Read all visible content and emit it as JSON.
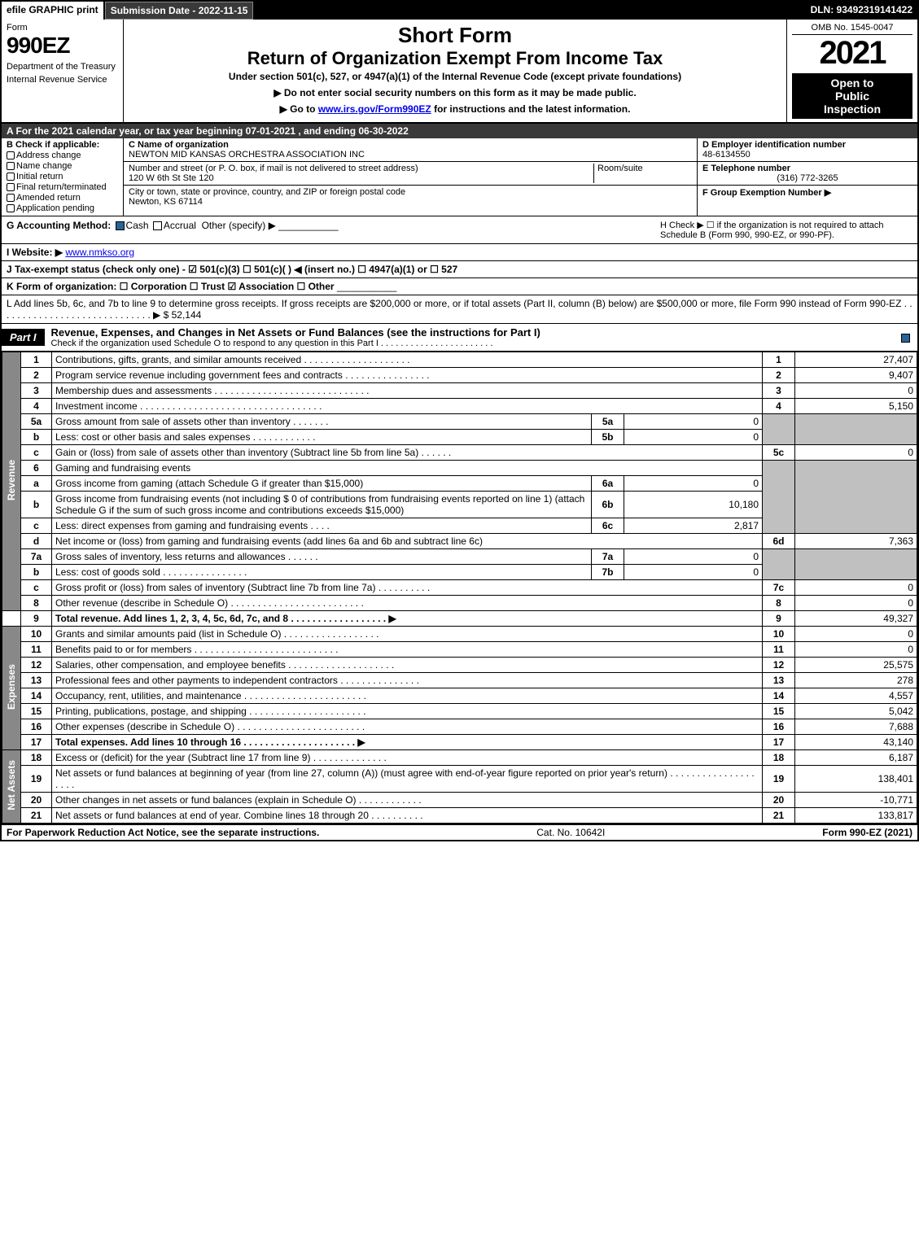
{
  "top_bar": {
    "efile": "efile GRAPHIC print",
    "submission": "Submission Date - 2022-11-15",
    "dln": "DLN: 93492319141422"
  },
  "header": {
    "form_label": "Form",
    "form_number": "990EZ",
    "dept1": "Department of the Treasury",
    "dept2": "Internal Revenue Service",
    "short_form": "Short Form",
    "return_title": "Return of Organization Exempt From Income Tax",
    "under_text": "Under section 501(c), 527, or 4947(a)(1) of the Internal Revenue Code (except private foundations)",
    "instr1": "▶ Do not enter social security numbers on this form as it may be made public.",
    "instr2_pre": "▶ Go to ",
    "instr2_link": "www.irs.gov/Form990EZ",
    "instr2_post": " for instructions and the latest information.",
    "omb": "OMB No. 1545-0047",
    "year": "2021",
    "open1": "Open to",
    "open2": "Public",
    "open3": "Inspection"
  },
  "section_A": "A  For the 2021 calendar year, or tax year beginning 07-01-2021 , and ending 06-30-2022",
  "col_B": {
    "header": "B  Check if applicable:",
    "items": [
      "Address change",
      "Name change",
      "Initial return",
      "Final return/terminated",
      "Amended return",
      "Application pending"
    ]
  },
  "col_C": {
    "c_label": "C Name of organization",
    "c_value": "NEWTON MID KANSAS ORCHESTRA ASSOCIATION INC",
    "street_label": "Number and street (or P. O. box, if mail is not delivered to street address)",
    "street_value": "120 W 6th St Ste 120",
    "room_label": "Room/suite",
    "room_value": "",
    "city_label": "City or town, state or province, country, and ZIP or foreign postal code",
    "city_value": "Newton, KS  67114"
  },
  "col_DEF": {
    "d_label": "D Employer identification number",
    "d_value": "48-6134550",
    "e_label": "E Telephone number",
    "e_value": "(316) 772-3265",
    "f_label": "F Group Exemption Number  ▶",
    "f_value": ""
  },
  "method": {
    "g_label": "G Accounting Method:",
    "cash": "Cash",
    "accrual": "Accrual",
    "other": "Other (specify) ▶",
    "h_text": "H  Check ▶ ☐ if the organization is not required to attach Schedule B (Form 990, 990-EZ, or 990-PF)."
  },
  "website": {
    "label": "I Website: ▶",
    "value": "www.nmkso.org"
  },
  "tax_exempt": "J Tax-exempt status (check only one) - ☑ 501(c)(3) ☐ 501(c)( ) ◀ (insert no.) ☐ 4947(a)(1) or ☐ 527",
  "form_org": "K Form of organization:  ☐ Corporation  ☐ Trust  ☑ Association  ☐ Other",
  "line_L": {
    "text": "L Add lines 5b, 6c, and 7b to line 9 to determine gross receipts. If gross receipts are $200,000 or more, or if total assets (Part II, column (B) below) are $500,000 or more, file Form 990 instead of Form 990-EZ . . . . . . . . . . . . . . . . . . . . . . . . . . . . . ▶ $ ",
    "value": "52,144"
  },
  "part1": {
    "tab": "Part I",
    "title": "Revenue, Expenses, and Changes in Net Assets or Fund Balances (see the instructions for Part I)",
    "sub": "Check if the organization used Schedule O to respond to any question in this Part I . . . . . . . . . . . . . . . . . . . . . . ."
  },
  "side_labels": {
    "revenue": "Revenue",
    "expenses": "Expenses",
    "netassets": "Net Assets"
  },
  "rows": {
    "r1": {
      "n": "1",
      "d": "Contributions, gifts, grants, and similar amounts received",
      "ln": "1",
      "v": "27,407"
    },
    "r2": {
      "n": "2",
      "d": "Program service revenue including government fees and contracts",
      "ln": "2",
      "v": "9,407"
    },
    "r3": {
      "n": "3",
      "d": "Membership dues and assessments",
      "ln": "3",
      "v": "0"
    },
    "r4": {
      "n": "4",
      "d": "Investment income",
      "ln": "4",
      "v": "5,150"
    },
    "r5a": {
      "n": "5a",
      "d": "Gross amount from sale of assets other than inventory",
      "sn": "5a",
      "sv": "0"
    },
    "r5b": {
      "n": "b",
      "d": "Less: cost or other basis and sales expenses",
      "sn": "5b",
      "sv": "0"
    },
    "r5c": {
      "n": "c",
      "d": "Gain or (loss) from sale of assets other than inventory (Subtract line 5b from line 5a)",
      "ln": "5c",
      "v": "0"
    },
    "r6": {
      "n": "6",
      "d": "Gaming and fundraising events"
    },
    "r6a": {
      "n": "a",
      "d": "Gross income from gaming (attach Schedule G if greater than $15,000)",
      "sn": "6a",
      "sv": "0"
    },
    "r6b": {
      "n": "b",
      "d": "Gross income from fundraising events (not including $ 0  of contributions from fundraising events reported on line 1) (attach Schedule G if the sum of such gross income and contributions exceeds $15,000)",
      "sn": "6b",
      "sv": "10,180"
    },
    "r6c": {
      "n": "c",
      "d": "Less: direct expenses from gaming and fundraising events",
      "sn": "6c",
      "sv": "2,817"
    },
    "r6d": {
      "n": "d",
      "d": "Net income or (loss) from gaming and fundraising events (add lines 6a and 6b and subtract line 6c)",
      "ln": "6d",
      "v": "7,363"
    },
    "r7a": {
      "n": "7a",
      "d": "Gross sales of inventory, less returns and allowances",
      "sn": "7a",
      "sv": "0"
    },
    "r7b": {
      "n": "b",
      "d": "Less: cost of goods sold",
      "sn": "7b",
      "sv": "0"
    },
    "r7c": {
      "n": "c",
      "d": "Gross profit or (loss) from sales of inventory (Subtract line 7b from line 7a)",
      "ln": "7c",
      "v": "0"
    },
    "r8": {
      "n": "8",
      "d": "Other revenue (describe in Schedule O)",
      "ln": "8",
      "v": "0"
    },
    "r9": {
      "n": "9",
      "d": "Total revenue. Add lines 1, 2, 3, 4, 5c, 6d, 7c, and 8  . . . . . . . . . . . . . . . . . .  ▶",
      "ln": "9",
      "v": "49,327"
    },
    "r10": {
      "n": "10",
      "d": "Grants and similar amounts paid (list in Schedule O)",
      "ln": "10",
      "v": "0"
    },
    "r11": {
      "n": "11",
      "d": "Benefits paid to or for members",
      "ln": "11",
      "v": "0"
    },
    "r12": {
      "n": "12",
      "d": "Salaries, other compensation, and employee benefits",
      "ln": "12",
      "v": "25,575"
    },
    "r13": {
      "n": "13",
      "d": "Professional fees and other payments to independent contractors",
      "ln": "13",
      "v": "278"
    },
    "r14": {
      "n": "14",
      "d": "Occupancy, rent, utilities, and maintenance",
      "ln": "14",
      "v": "4,557"
    },
    "r15": {
      "n": "15",
      "d": "Printing, publications, postage, and shipping",
      "ln": "15",
      "v": "5,042"
    },
    "r16": {
      "n": "16",
      "d": "Other expenses (describe in Schedule O)",
      "ln": "16",
      "v": "7,688"
    },
    "r17": {
      "n": "17",
      "d": "Total expenses. Add lines 10 through 16  . . . . . . . . . . . . . . . . . . . . .  ▶",
      "ln": "17",
      "v": "43,140"
    },
    "r18": {
      "n": "18",
      "d": "Excess or (deficit) for the year (Subtract line 17 from line 9)",
      "ln": "18",
      "v": "6,187"
    },
    "r19": {
      "n": "19",
      "d": "Net assets or fund balances at beginning of year (from line 27, column (A)) (must agree with end-of-year figure reported on prior year's return)",
      "ln": "19",
      "v": "138,401"
    },
    "r20": {
      "n": "20",
      "d": "Other changes in net assets or fund balances (explain in Schedule O)",
      "ln": "20",
      "v": "-10,771"
    },
    "r21": {
      "n": "21",
      "d": "Net assets or fund balances at end of year. Combine lines 18 through 20",
      "ln": "21",
      "v": "133,817"
    }
  },
  "footer": {
    "left": "For Paperwork Reduction Act Notice, see the separate instructions.",
    "center": "Cat. No. 10642I",
    "right": "Form 990-EZ (2021)"
  },
  "colors": {
    "black": "#000000",
    "dark_gray": "#3a3a3a",
    "side_gray": "#888888",
    "shade": "#c0c0c0",
    "check_blue": "#2a6496",
    "link": "#0000ee"
  }
}
